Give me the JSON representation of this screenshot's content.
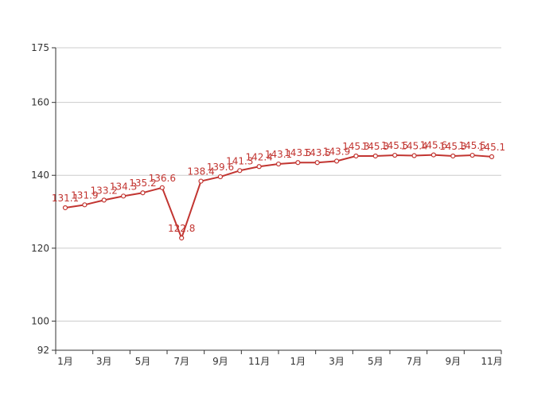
{
  "chart_data": {
    "type": "line",
    "title": "",
    "xlabel": "",
    "ylabel": "",
    "x": [
      "1月",
      "2月",
      "3月",
      "4月",
      "5月",
      "6月",
      "7月",
      "8月",
      "9月",
      "10月",
      "11月",
      "12月",
      "1月",
      "2月",
      "3月",
      "4月",
      "5月",
      "6月",
      "7月",
      "8月",
      "9月",
      "10月",
      "11月"
    ],
    "x_tick_labels": [
      "1月",
      "3月",
      "5月",
      "7月",
      "9月",
      "11月",
      "1月",
      "3月",
      "5月",
      "7月",
      "9月",
      "11月"
    ],
    "y_ticks": [
      92,
      100,
      120,
      140,
      160,
      175
    ],
    "ylim": [
      92,
      175
    ],
    "grid": true,
    "series": [
      {
        "color": "#c23531",
        "values": [
          131.1,
          131.9,
          133.2,
          134.3,
          135.2,
          136.6,
          122.8,
          138.4,
          139.6,
          141.3,
          142.4,
          143.1,
          143.5,
          143.5,
          143.9,
          145.3,
          145.3,
          145.5,
          145.4,
          145.6,
          145.3,
          145.5,
          145.1
        ],
        "labels": [
          "131.1",
          "131.9",
          "133.2",
          "134.3",
          "135.2",
          "136.6",
          "122.8",
          "138.4",
          "139.6",
          "141.3",
          "142.4",
          "143.1",
          "143.5",
          "143.5",
          "143.9",
          "145.3",
          "145.3",
          "145.5",
          "145.4",
          "145.6",
          "145.3",
          "145.5",
          "145.1"
        ]
      }
    ]
  }
}
